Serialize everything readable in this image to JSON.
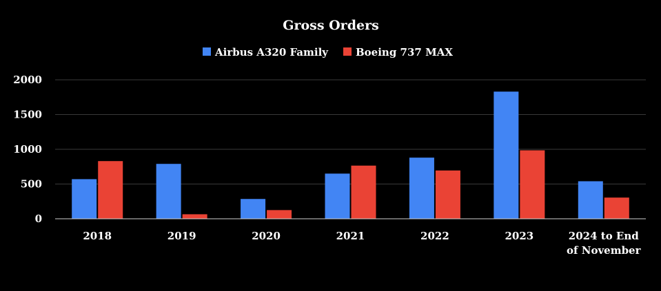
{
  "chart_data": {
    "type": "bar",
    "title": "Gross Orders",
    "categories": [
      "2018",
      "2019",
      "2020",
      "2021",
      "2022",
      "2023",
      "2024 to End of November"
    ],
    "series": [
      {
        "name": "Airbus A320 Family",
        "color": "#4285f4",
        "values": [
          570,
          790,
          285,
          650,
          880,
          1830,
          540
        ]
      },
      {
        "name": "Boeing 737 MAX",
        "color": "#ea4335",
        "values": [
          830,
          65,
          125,
          765,
          695,
          985,
          305
        ]
      }
    ],
    "y_ticks": [
      "0",
      "500",
      "1000",
      "1500",
      "2000"
    ],
    "ylim": [
      0,
      2000
    ],
    "grid": true,
    "legend_position": "top-center"
  }
}
